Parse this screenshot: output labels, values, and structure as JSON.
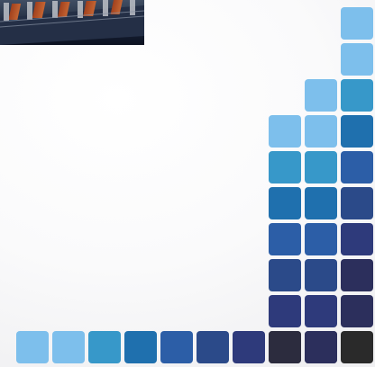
{
  "photo": {
    "subject": "image-thumbnail"
  },
  "tile_palette": {
    "sky": "#7dbfec",
    "cyan": "#3798c9",
    "ocean": "#1f70ae",
    "royal": "#2c5ea7",
    "navy": "#2b4a89",
    "indigo": "#2e3a7b",
    "midnight": "#2c2f5c",
    "charcoal": "#2c2c3e",
    "black": "#2a2a2a"
  },
  "column_tiles": [
    [
      "charcoal",
      "midnight",
      "midnight",
      "indigo",
      "navy",
      "royal",
      "ocean",
      "cyan",
      "sky",
      "sky"
    ],
    [
      "midnight",
      "indigo",
      "navy",
      "royal",
      "ocean",
      "cyan",
      "sky",
      "sky"
    ],
    [
      "charcoal",
      "indigo",
      "navy",
      "royal",
      "ocean",
      "cyan",
      "sky"
    ]
  ],
  "bottom_row_tiles": [
    "sky",
    "sky",
    "cyan",
    "ocean",
    "royal",
    "navy",
    "indigo",
    "charcoal",
    "midnight",
    "black"
  ]
}
